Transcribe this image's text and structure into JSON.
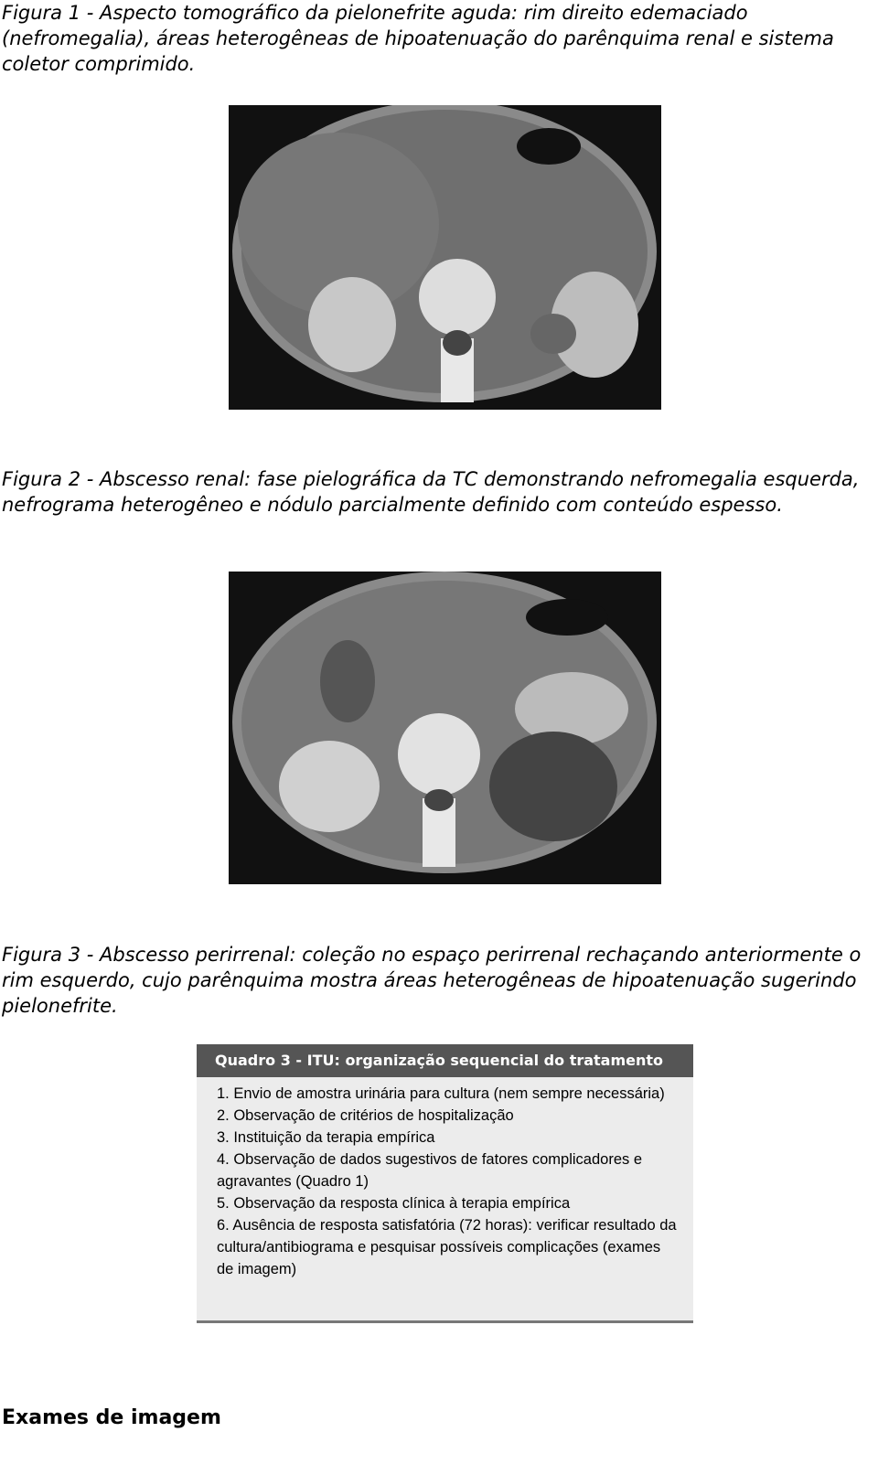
{
  "figures": [
    {
      "caption": "Figura 1 - Aspecto tomográfico da pielonefrite aguda: rim direito edemaciado (nefromegalia), áreas heterogêneas de hipoatenuação do parênquima renal e sistema coletor comprimido."
    },
    {
      "caption": "Figura 2 - Abscesso renal: fase pielográfica da TC demonstrando nefromegalia esquerda, nefrograma heterogêneo e nódulo parcialmente definido com conteúdo espesso."
    },
    {
      "caption": "Figura 3 - Abscesso perirrenal: coleção no espaço perirrenal rechaçando anteriormente o rim esquerdo, cujo parênquima mostra áreas heterogêneas de hipoatenuação sugerindo pielonefrite."
    }
  ],
  "table": {
    "title": "Quadro 3 - ITU: organização sequencial do tratamento",
    "items": [
      "1. Envio de amostra urinária para cultura (nem sempre necessária)",
      "2. Observação de critérios de hospitalização",
      "3. Instituição da terapia empírica",
      "4. Observação de dados sugestivos de fatores complicadores e agravantes (Quadro 1)",
      "5. Observação da resposta clínica à terapia empírica",
      "6. Ausência de resposta satisfatória (72 horas): verificar resultado da cultura/antibiograma e pesquisar possíveis complicações (exames de imagem)"
    ]
  },
  "heading": "Exames de imagem"
}
